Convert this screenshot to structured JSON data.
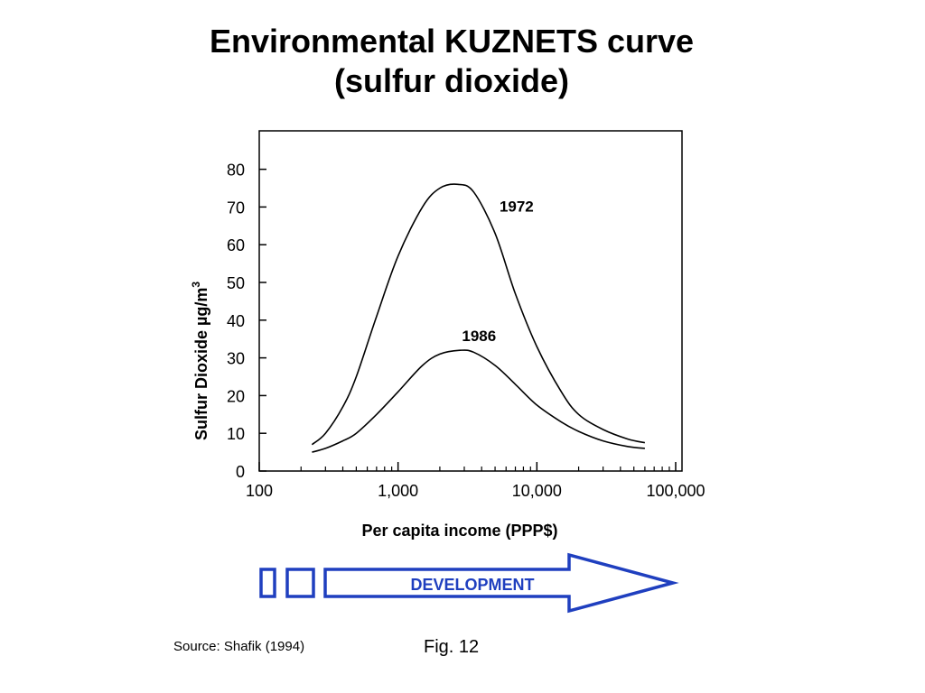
{
  "title_line1": "Environmental KUZNETS curve",
  "title_line2": "(sulfur dioxide)",
  "chart_data": {
    "type": "line",
    "title": "Environmental KUZNETS curve (sulfur dioxide)",
    "xlabel": "Per capita income (PPP$)",
    "ylabel": "Sulfur Dioxide  µg/m",
    "ylabel_sup": "3",
    "x_scale": "log",
    "xlim": [
      100,
      100000
    ],
    "ylim": [
      0,
      90
    ],
    "x_ticks": [
      "100",
      "1,000",
      "10,000",
      "100,000"
    ],
    "y_ticks": [
      "0",
      "10",
      "20",
      "30",
      "40",
      "50",
      "60",
      "70",
      "80"
    ],
    "grid": false,
    "series": [
      {
        "name": "1972",
        "x": [
          240,
          300,
          400,
          500,
          700,
          1000,
          1500,
          2000,
          2700,
          3500,
          5000,
          7000,
          10000,
          15000,
          20000,
          30000,
          45000,
          60000
        ],
        "y": [
          7,
          10,
          17,
          25,
          41,
          57,
          70,
          75,
          76,
          74,
          63,
          47,
          33,
          21,
          15,
          11,
          8.5,
          7.5
        ]
      },
      {
        "name": "1986",
        "x": [
          240,
          300,
          400,
          500,
          700,
          1000,
          1500,
          2000,
          2800,
          3500,
          5000,
          7000,
          10000,
          15000,
          20000,
          30000,
          45000,
          60000
        ],
        "y": [
          5,
          6,
          8,
          10,
          15,
          21,
          28,
          31,
          32,
          31.5,
          28,
          23,
          17.5,
          13,
          10.5,
          8,
          6.5,
          6
        ]
      }
    ]
  },
  "development_label": "DEVELOPMENT",
  "arrow_color": "#1f3fbf",
  "source": "Source: Shafik (1994)",
  "fig": "Fig. 12"
}
